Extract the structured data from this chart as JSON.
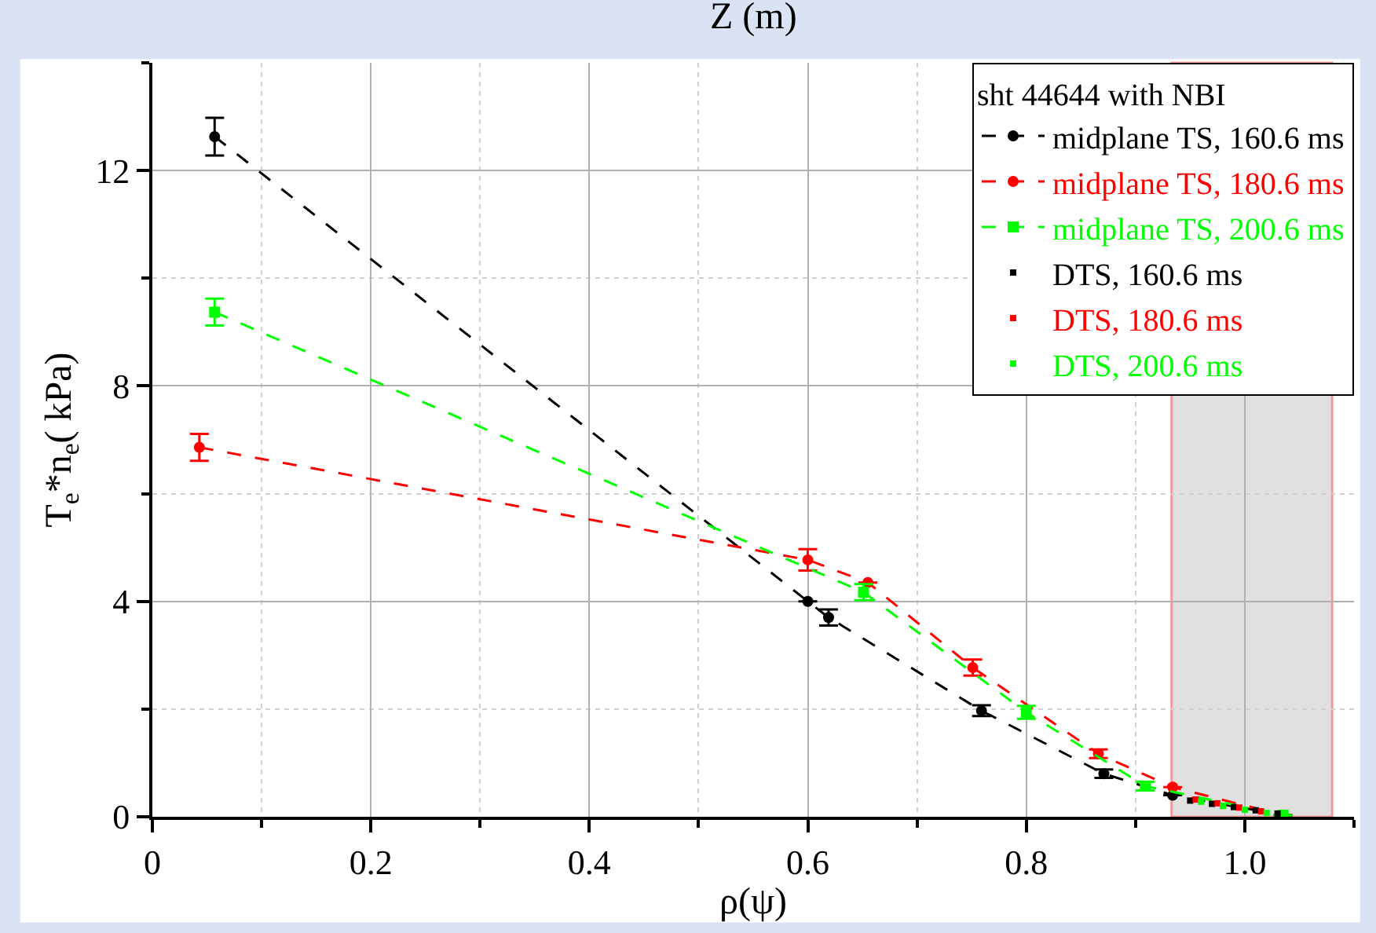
{
  "chart_data": {
    "type": "line",
    "ylabel": "T$_{e}$*n$_{e}$( kPa)",
    "xlabel": "ρ(ψ)",
    "legend_title": "sht 44644 with NBI",
    "annotations": [
      "Z (m)"
    ],
    "xlim": [
      0,
      1.1
    ],
    "xticks": [
      0,
      0.2,
      0.4,
      0.6,
      0.8,
      {
        "value": 1.0,
        "label": "1.0"
      }
    ],
    "ylim": [
      0,
      14
    ],
    "yticks": [
      0,
      4,
      8,
      12
    ],
    "grid": true,
    "legend": "top right",
    "bands": [
      {
        "axis": "x",
        "from": 0.933,
        "to": 1.08,
        "color": "#d9d9d9"
      }
    ],
    "series": [
      {
        "name": "midplane TS, 160.6 ms",
        "color": "#000000",
        "line_style": "dashed",
        "marker": "circle",
        "x": [
          0.057,
          0.6,
          0.619,
          0.759,
          0.871,
          0.934,
          1.035
        ],
        "values": [
          12.63,
          4.0,
          3.7,
          1.97,
          0.8,
          0.4,
          0.03
        ],
        "errors": [
          0.35,
          null,
          0.15,
          0.1,
          0.08,
          null,
          null
        ]
      },
      {
        "name": "midplane TS, 180.6 ms",
        "color": "#ff0000",
        "line_style": "dashed",
        "marker": "circle",
        "x": [
          0.043,
          0.6,
          0.655,
          0.751,
          0.866,
          0.934,
          1.035
        ],
        "values": [
          6.86,
          4.77,
          4.35,
          2.77,
          1.17,
          0.55,
          0.03
        ],
        "errors": [
          0.25,
          0.2,
          null,
          0.15,
          0.08,
          null,
          null
        ]
      },
      {
        "name": "midplane TS, 200.6 ms",
        "color": "#00ff00",
        "line_style": "dashed",
        "marker": "square",
        "x": [
          0.057,
          0.651,
          0.8,
          0.909,
          1.035
        ],
        "values": [
          9.37,
          4.17,
          1.94,
          0.57,
          0.03
        ],
        "errors": [
          0.25,
          0.15,
          0.12,
          0.08,
          null
        ]
      },
      {
        "name": "DTS, 160.6 ms",
        "color": "#000000",
        "type": "scatter",
        "marker": "square",
        "x": [
          0.95,
          0.97,
          0.99,
          1.01,
          1.03
        ],
        "values": [
          0.3,
          0.24,
          0.18,
          0.12,
          0.06
        ]
      },
      {
        "name": "DTS, 180.6 ms",
        "color": "#ff0000",
        "type": "scatter",
        "marker": "square",
        "x": [
          0.955,
          0.975,
          0.995,
          1.015
        ],
        "values": [
          0.32,
          0.25,
          0.17,
          0.1
        ]
      },
      {
        "name": "DTS, 200.6 ms",
        "color": "#00ff00",
        "type": "scatter",
        "marker": "square",
        "x": [
          0.96,
          0.98,
          1.0,
          1.02
        ],
        "values": [
          0.28,
          0.2,
          0.13,
          0.07
        ]
      }
    ]
  }
}
